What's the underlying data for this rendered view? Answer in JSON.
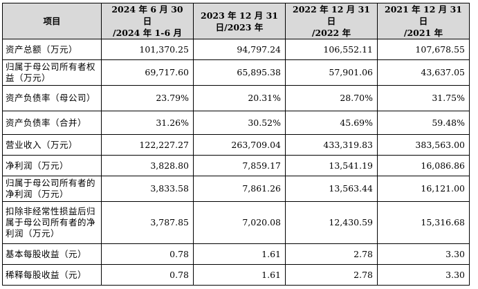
{
  "table": {
    "header": [
      {
        "lines": [
          "项目"
        ]
      },
      {
        "lines": [
          "2024 年 6 月 30 日",
          "/2024 年 1-6 月"
        ]
      },
      {
        "lines": [
          "2023 年 12 月 31",
          "日/2023 年"
        ]
      },
      {
        "lines": [
          "2022 年 12 月 31 日",
          "/2022 年"
        ]
      },
      {
        "lines": [
          "2021 年 12 月 31 日",
          "/2021 年"
        ]
      }
    ],
    "rows": [
      {
        "label": "资产总额（万元）",
        "values": [
          "101,370.25",
          "94,797.24",
          "106,552.11",
          "107,678.55"
        ]
      },
      {
        "label": "归属于母公司所有者权益（万元）",
        "values": [
          "69,717.60",
          "65,895.38",
          "57,901.06",
          "43,637.05"
        ]
      },
      {
        "label": "资产负债率（母公司）",
        "values": [
          "23.79%",
          "20.31%",
          "28.70%",
          "31.75%"
        ]
      },
      {
        "label": "资产负债率（合并）",
        "values": [
          "31.26%",
          "30.52%",
          "45.69%",
          "59.48%"
        ]
      },
      {
        "label": "营业收入（万元）",
        "values": [
          "122,227.27",
          "263,709.04",
          "433,319.83",
          "383,563.00"
        ]
      },
      {
        "label": "净利润（万元）",
        "values": [
          "3,828.80",
          "7,859.17",
          "13,541.19",
          "16,086.86"
        ]
      },
      {
        "label": "归属于母公司所有者的净利润（万元）",
        "values": [
          "3,833.58",
          "7,861.26",
          "13,563.44",
          "16,121.00"
        ]
      },
      {
        "label": "扣除非经常性损益后归属于母公司所有者的净利润（万元）",
        "values": [
          "3,787.85",
          "7,020.08",
          "12,430.59",
          "15,316.68"
        ]
      },
      {
        "label": "基本每股收益（元）",
        "values": [
          "0.78",
          "1.61",
          "2.78",
          "3.30"
        ]
      },
      {
        "label": "稀释每股收益（元）",
        "values": [
          "0.78",
          "1.61",
          "2.78",
          "3.30"
        ]
      }
    ]
  }
}
